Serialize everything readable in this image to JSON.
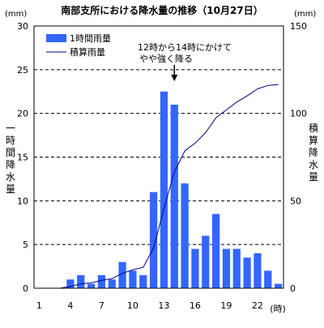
{
  "chart_data": {
    "type": "bar",
    "title": "南部支所における降水量の推移（10月27日）",
    "left_unit": "(mm)",
    "right_unit": "(mm)",
    "ylabel_left": "一時間降水量",
    "ylabel_right": "積算降水量",
    "x_unit_label": "(時)",
    "x_tick_labels": [
      "1",
      "4",
      "7",
      "10",
      "13",
      "16",
      "19",
      "22"
    ],
    "y_left_ticks": [
      "0",
      "5",
      "10",
      "15",
      "20",
      "25",
      "30"
    ],
    "y_right_ticks": [
      "0",
      "50",
      "100",
      "150"
    ],
    "ylim_left": [
      0,
      30
    ],
    "ylim_right": [
      0,
      150
    ],
    "grid": "horizontal dashed",
    "legend_position": "top-left",
    "annotation": [
      "12時から14時にかけて",
      "やや強く降る"
    ],
    "annotation_target_hour": 14,
    "hours": [
      1,
      2,
      3,
      4,
      5,
      6,
      7,
      8,
      9,
      10,
      11,
      12,
      13,
      14,
      15,
      16,
      17,
      18,
      19,
      20,
      21,
      22,
      23,
      24
    ],
    "series": [
      {
        "name": "1時間雨量",
        "type": "bar",
        "axis": "left",
        "color": "#3366ff",
        "values": [
          0,
          0,
          0,
          1,
          1.5,
          0.5,
          1.5,
          1,
          3,
          2,
          1.5,
          11,
          22.5,
          21,
          12,
          4.5,
          6,
          8.5,
          4.5,
          4.5,
          3.5,
          4,
          2,
          0.5
        ]
      },
      {
        "name": "積算雨量",
        "type": "line",
        "axis": "right",
        "color": "#000080",
        "values": [
          0,
          0,
          0,
          1,
          2.5,
          3,
          4.5,
          5.5,
          8.5,
          10.5,
          12,
          23,
          45.5,
          66.5,
          78.5,
          83,
          89,
          97.5,
          102,
          106.5,
          110,
          114,
          116,
          116.5
        ]
      }
    ]
  }
}
